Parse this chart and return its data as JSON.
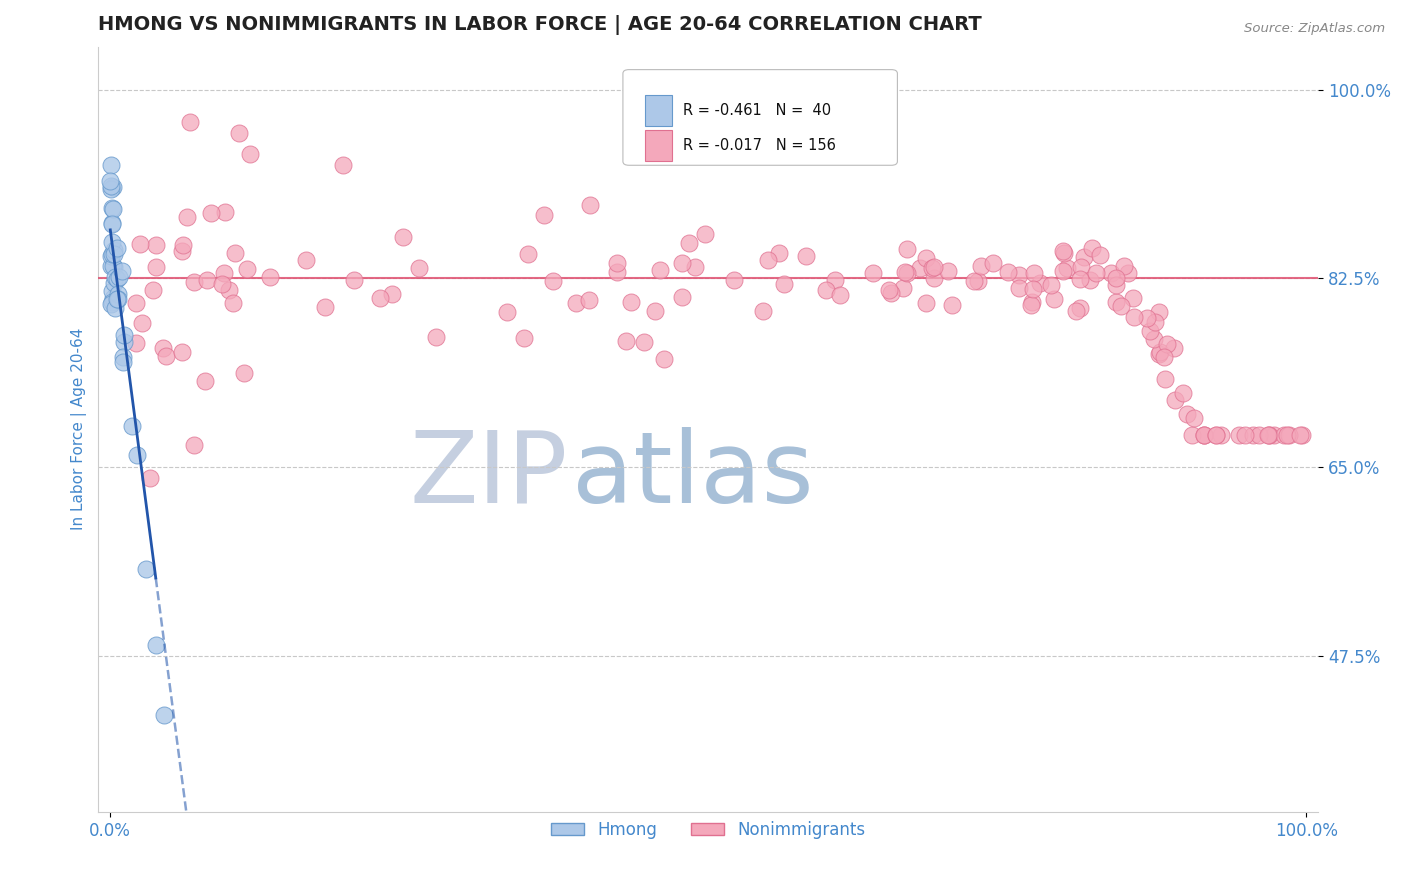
{
  "title": "HMONG VS NONIMMIGRANTS IN LABOR FORCE | AGE 20-64 CORRELATION CHART",
  "source_text": "Source: ZipAtlas.com",
  "ylabel": "In Labor Force | Age 20-64",
  "xlim": [
    -0.01,
    1.01
  ],
  "ylim": [
    0.33,
    1.04
  ],
  "yticks": [
    0.475,
    0.65,
    0.825,
    1.0
  ],
  "ytick_labels": [
    "47.5%",
    "65.0%",
    "82.5%",
    "100.0%"
  ],
  "xtick_labels": [
    "0.0%",
    "100.0%"
  ],
  "legend_r1": "R = -0.461",
  "legend_n1": "N =  40",
  "legend_r2": "R = -0.017",
  "legend_n2": "N = 156",
  "hmong_color": "#adc8e8",
  "hmong_edge_color": "#6699cc",
  "nonimm_color": "#f4a8bb",
  "nonimm_edge_color": "#e07090",
  "reg_line_hmong_color": "#2255aa",
  "reg_line_nonimm_color": "#e05070",
  "hline_color": "#e05070",
  "hline_y": 0.825,
  "dashed_hline_color": "#c8c8c8",
  "watermark_zip": "ZIP",
  "watermark_atlas": "atlas",
  "watermark_zip_color": "#c5cfe0",
  "watermark_atlas_color": "#a8c0d8",
  "background_color": "#ffffff",
  "title_color": "#222222",
  "title_fontsize": 14,
  "tick_label_color": "#4488cc",
  "source_color": "#888888"
}
